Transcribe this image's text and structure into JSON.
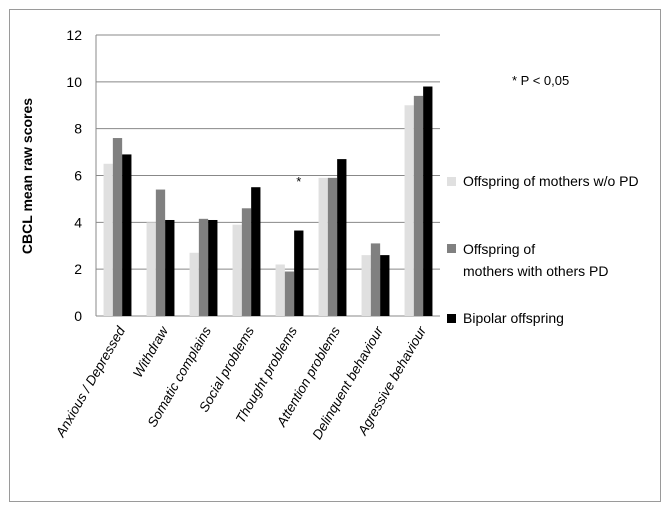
{
  "chart_data": {
    "type": "bar",
    "ylabel": "CBCL mean raw scores",
    "ylim": [
      0,
      12
    ],
    "yticks": [
      "0",
      "2",
      "4",
      "6",
      "8",
      "10",
      "12"
    ],
    "grid": true,
    "legend_position": "right",
    "categories": [
      "Anxious / Depressed",
      "Withdraw",
      "Somatic complains",
      "Social problems",
      "Thought problems",
      "Attention problems",
      "Delinquent behaviour",
      "Agressive behaviour"
    ],
    "series": [
      {
        "name": "Offspring of mothers w/o PD",
        "color": "#e0e0e0",
        "values": [
          6.5,
          4.0,
          2.7,
          3.9,
          2.2,
          5.9,
          2.6,
          9.0
        ]
      },
      {
        "name": "Offspring of mothers with others PD",
        "color": "#808080",
        "values": [
          7.6,
          5.4,
          4.15,
          4.6,
          1.9,
          5.9,
          3.1,
          9.4
        ]
      },
      {
        "name": "Bipolar offspring",
        "color": "#000000",
        "values": [
          6.9,
          4.1,
          4.1,
          5.5,
          3.65,
          6.7,
          2.6,
          9.8
        ]
      }
    ],
    "annotations": [
      {
        "text": "*",
        "category": "Thought problems",
        "value": 5.8
      },
      {
        "text": "* P < 0,05"
      }
    ]
  }
}
